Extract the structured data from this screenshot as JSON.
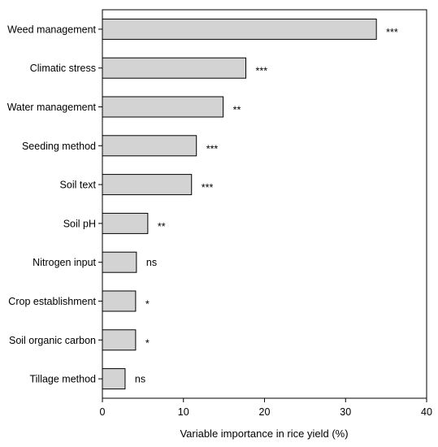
{
  "chart_data": {
    "type": "bar",
    "orientation": "horizontal",
    "title": "",
    "xlabel": "Variable importance in rice yield (%)",
    "ylabel": "",
    "xlim": [
      0,
      40
    ],
    "xticks": [
      0,
      10,
      20,
      30,
      40
    ],
    "grid": false,
    "legend": "none",
    "bar_color": "#d3d3d3",
    "bar_edge_color": "#000000",
    "categories": [
      "Weed management",
      "Climatic stress",
      "Water management",
      "Seeding method",
      "Soil text",
      "Soil pH",
      "Nitrogen input",
      "Crop establishment",
      "Soil organic carbon",
      "Tillage method"
    ],
    "values": [
      33.8,
      17.7,
      14.9,
      11.6,
      11.0,
      5.6,
      4.2,
      4.1,
      4.1,
      2.8
    ],
    "significance": [
      "***",
      "***",
      "**",
      "***",
      "***",
      "**",
      "ns",
      "*",
      "*",
      "ns"
    ]
  }
}
